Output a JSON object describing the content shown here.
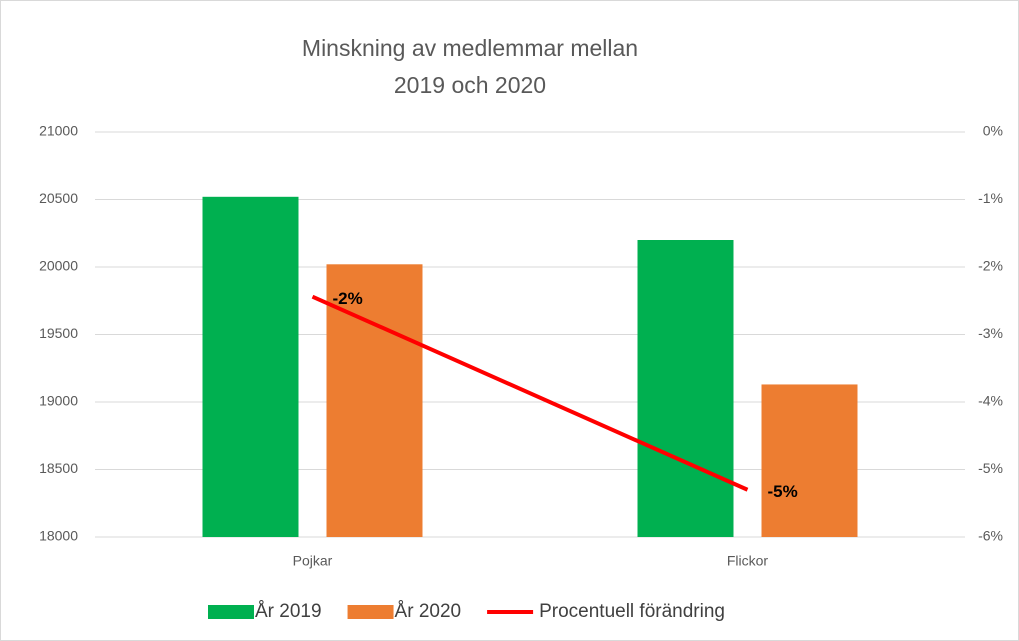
{
  "chart_data": {
    "type": "bar_line",
    "title": [
      "Minskning av medlemmar mellan",
      "2019 och 2020"
    ],
    "categories": [
      "Pojkar",
      "Flickor"
    ],
    "series": [
      {
        "name": "År 2019",
        "color": "#00b050",
        "values": [
          20520,
          20200
        ]
      },
      {
        "name": "År 2020",
        "color": "#ed7d31",
        "values": [
          20020,
          19130
        ]
      },
      {
        "name": "Procentuell förändring",
        "color": "#ff0000",
        "axis": "y2",
        "values": [
          -2.44,
          -5.3
        ],
        "value_labels": [
          "-2%",
          "-5%"
        ]
      }
    ],
    "ylim": [
      18000,
      21000
    ],
    "yticks": [
      18000,
      18500,
      19000,
      19500,
      20000,
      20500,
      21000
    ],
    "y2lim": [
      -6,
      0
    ],
    "y2ticks": [
      {
        "value": -6,
        "label": "-6%"
      },
      {
        "value": -5,
        "label": "-5%"
      },
      {
        "value": -4,
        "label": "-4%"
      },
      {
        "value": -3,
        "label": "-3%"
      },
      {
        "value": -2,
        "label": "-2%"
      },
      {
        "value": -1,
        "label": "-1%"
      },
      {
        "value": 0,
        "label": "0%"
      }
    ],
    "grid": true,
    "legend": "bottom"
  }
}
